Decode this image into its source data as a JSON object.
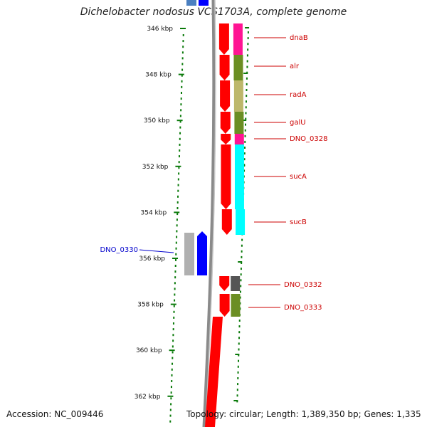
{
  "title": "Dichelobacter nodosus VCS1703A, complete genome",
  "scale_unit": "kbp",
  "ticks_kbp": [
    346,
    348,
    350,
    352,
    354,
    356,
    358,
    360,
    362
  ],
  "genes": [
    {
      "name": "dnaB",
      "strand": "+",
      "label_color": "#cc0000",
      "cog_color": "#ff1493"
    },
    {
      "name": "alr",
      "strand": "+",
      "label_color": "#cc0000",
      "cog_color": "#6b8e23"
    },
    {
      "name": "radA",
      "strand": "+",
      "label_color": "#cc0000",
      "cog_color": "#bdb76b"
    },
    {
      "name": "galU",
      "strand": "+",
      "label_color": "#cc0000",
      "cog_color": "#6b8e23"
    },
    {
      "name": "DNO_0328",
      "strand": "+",
      "label_color": "#cc0000",
      "cog_color": "#ff1493"
    },
    {
      "name": "sucA",
      "strand": "+",
      "label_color": "#cc0000",
      "cog_color": "#00ffff"
    },
    {
      "name": "sucB",
      "strand": "+",
      "label_color": "#cc0000",
      "cog_color": "#00ffff"
    },
    {
      "name": "DNO_0330",
      "strand": "-",
      "label_color": "#0000cc",
      "cog_color": "#b0b0b0"
    },
    {
      "name": "DNO_0332",
      "strand": "+",
      "label_color": "#cc0000",
      "cog_color": "#555555"
    },
    {
      "name": "DNO_0333",
      "strand": "+",
      "label_color": "#cc0000",
      "cog_color": "#6b8e23"
    }
  ],
  "footer": {
    "accession": "Accession: NC_009446",
    "topology": "Topology: circular; Length: 1,389,350 bp; Genes: 1,335"
  },
  "colors": {
    "forward_strand": "#ff0000",
    "reverse_strand": "#0000ff",
    "axis_dots": "#0a7a0a",
    "backbone": "#8a8a8a"
  }
}
